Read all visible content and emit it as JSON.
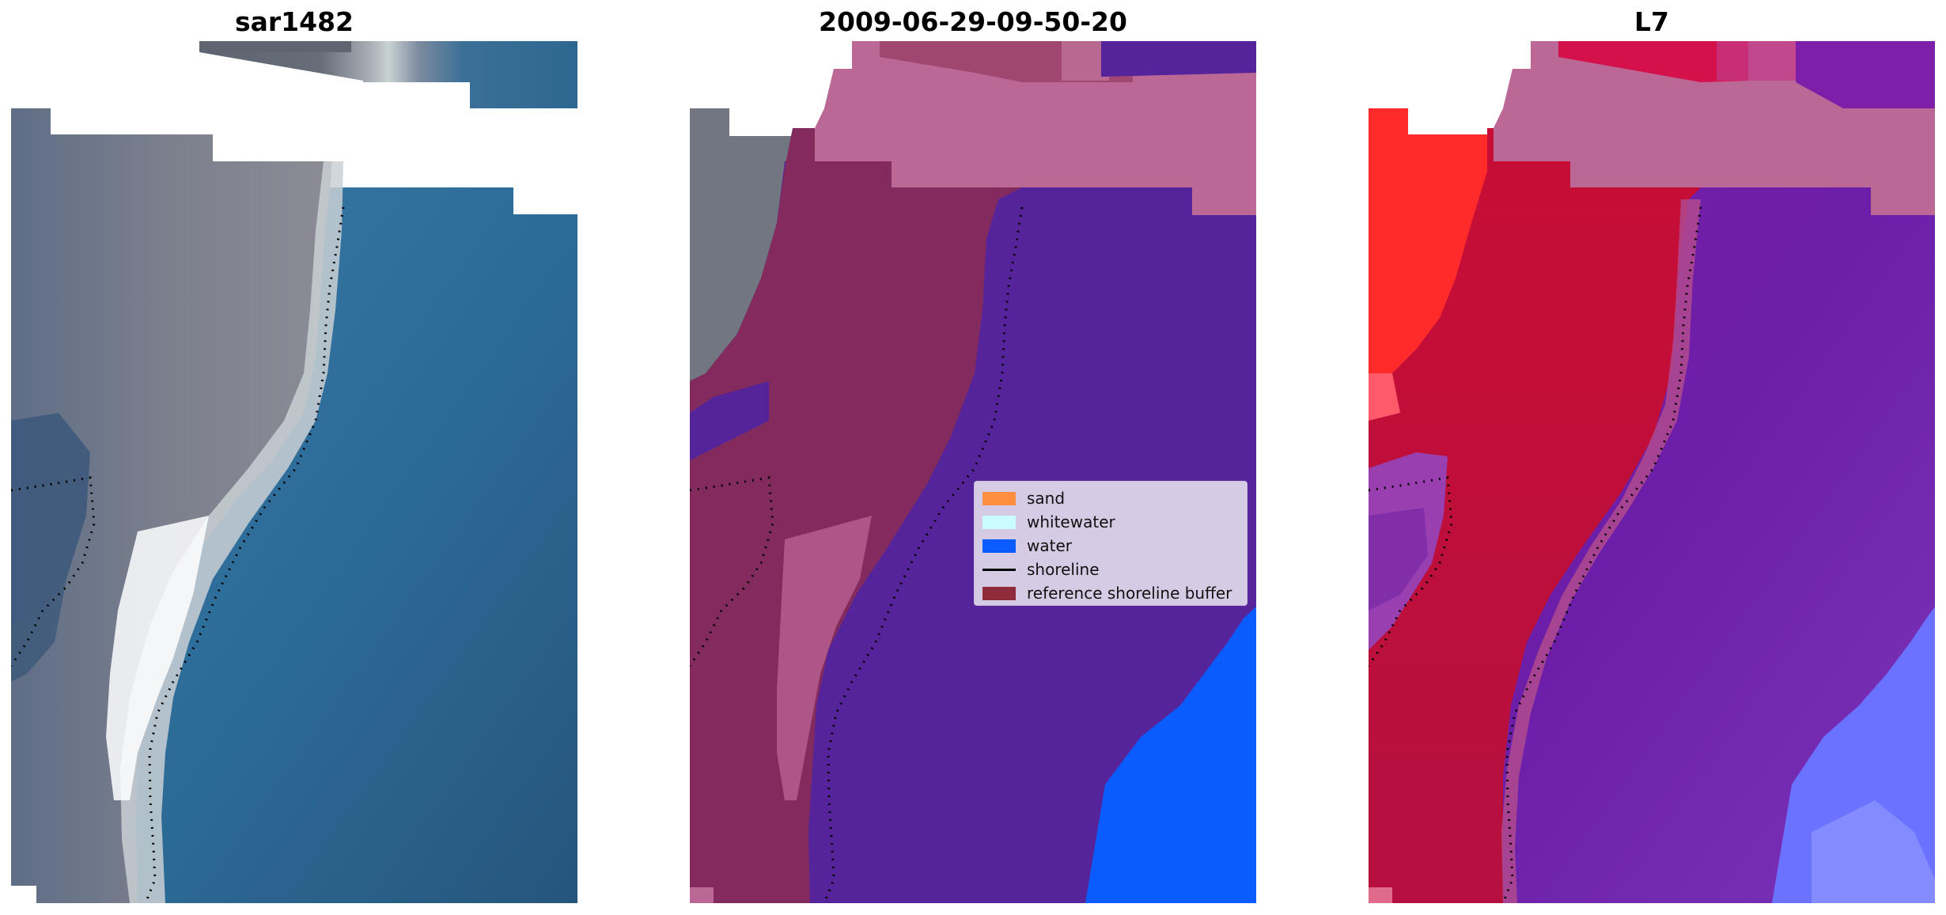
{
  "panels": [
    {
      "title": "sar1482"
    },
    {
      "title": "2009-06-29-09-50-20"
    },
    {
      "title": "L7"
    }
  ],
  "legend": {
    "items": [
      {
        "label": "sand",
        "color": "#ff8f3f",
        "kind": "patch"
      },
      {
        "label": "whitewater",
        "color": "#c9fbff",
        "kind": "patch"
      },
      {
        "label": "water",
        "color": "#0a5cff",
        "kind": "patch"
      },
      {
        "label": "shoreline",
        "color": "#000000",
        "kind": "line"
      },
      {
        "label": "reference shoreline buffer",
        "color": "#8e2c3c",
        "kind": "patch"
      }
    ]
  },
  "colors": {
    "land_gray": "#7a7f8c",
    "sea_blue": "#2e6d98",
    "beach_white": "#e8eef0",
    "class_purple": "#55249a",
    "class_pink": "#bc6896",
    "class_maroon": "#832b5e",
    "water_blue": "#0a5cff",
    "ndwi_red": "#c20f37",
    "ndwi_bright_red": "#ff2a2a",
    "ndwi_purple": "#6c1ea8",
    "ndwi_light_blue": "#6a72ff"
  }
}
